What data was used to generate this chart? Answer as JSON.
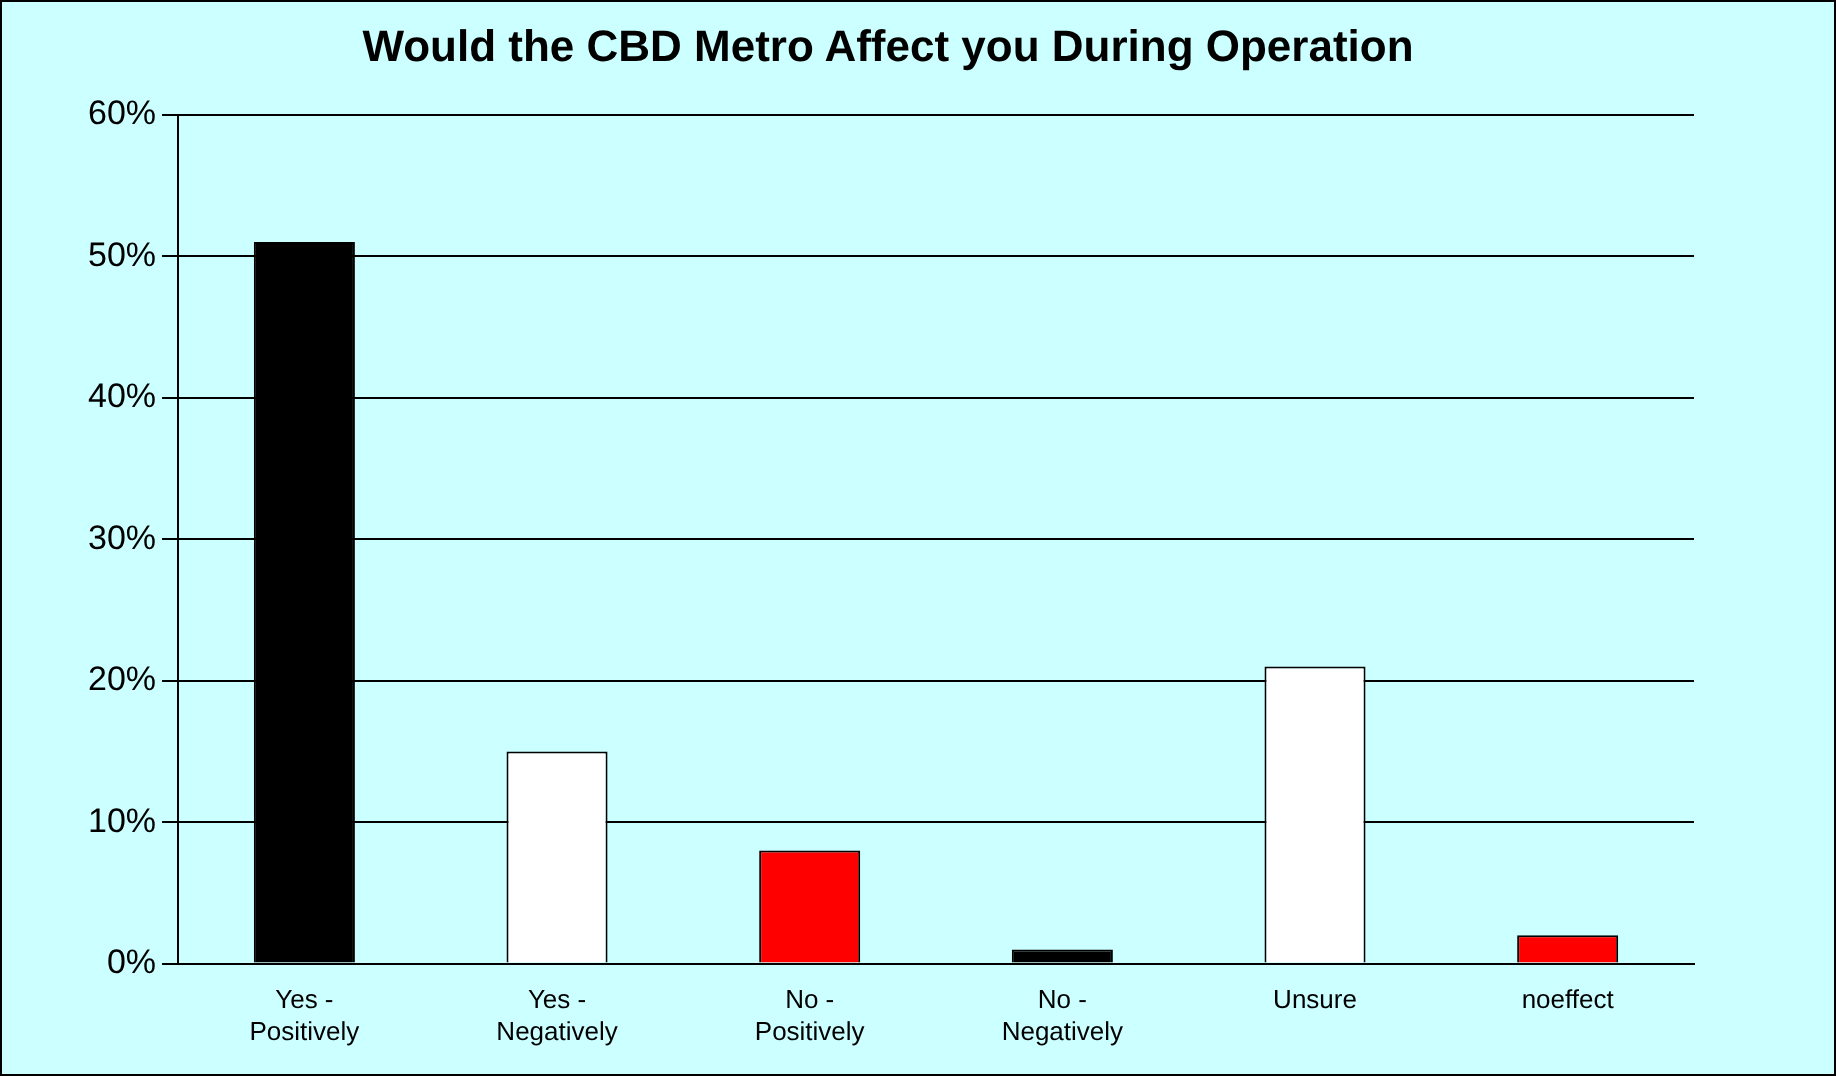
{
  "chart_data": {
    "type": "bar",
    "title": "Would the CBD Metro Affect you During Operation",
    "categories": [
      "Yes - Positively",
      "Yes - Negatively",
      "No - Positively",
      "No - Negatively",
      "Unsure",
      "noeffect"
    ],
    "values": [
      51,
      15,
      8,
      1,
      21,
      2
    ],
    "colors": [
      "#000000",
      "#ffffff",
      "#ff0000",
      "#000000",
      "#ffffff",
      "#ff0000"
    ],
    "ylim": [
      0,
      60
    ],
    "yticks": [
      {
        "value": 0,
        "label": "0%"
      },
      {
        "value": 10,
        "label": "10%"
      },
      {
        "value": 20,
        "label": "20%"
      },
      {
        "value": 30,
        "label": "30%"
      },
      {
        "value": 40,
        "label": "40%"
      },
      {
        "value": 50,
        "label": "50%"
      },
      {
        "value": 60,
        "label": "60%"
      }
    ],
    "grid": "y",
    "legend": false
  }
}
